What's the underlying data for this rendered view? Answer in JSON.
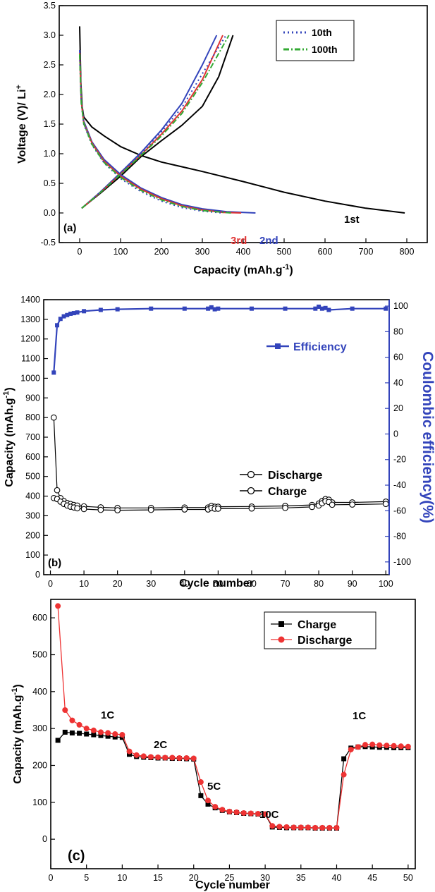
{
  "chart_data": [
    {
      "type": "line",
      "panel_label": "(a)",
      "xlabel": "Capacity (mAh.g",
      "xlabel_sup": "-1",
      "xlabel_end": ")",
      "ylabel": "Voltage (V)/ Li",
      "ylabel_sup": "+",
      "xlim": [
        -50,
        850
      ],
      "ylim": [
        -0.5,
        3.5
      ],
      "xticks": [
        "0",
        "100",
        "200",
        "300",
        "400",
        "500",
        "600",
        "700",
        "800"
      ],
      "yticks": [
        "-0.5",
        "0.0",
        "0.5",
        "1.0",
        "1.5",
        "2.0",
        "2.5",
        "3.0",
        "3.5"
      ],
      "legend": [
        "10th",
        "100th"
      ],
      "annotations": [
        "1st",
        "2nd",
        "3rd"
      ],
      "series": [
        {
          "name": "1st",
          "color": "#000000",
          "dash": "",
          "discharge": [
            [
              0,
              3.15
            ],
            [
              3,
              2.2
            ],
            [
              6,
              1.8
            ],
            [
              10,
              1.62
            ],
            [
              30,
              1.45
            ],
            [
              60,
              1.3
            ],
            [
              100,
              1.12
            ],
            [
              150,
              0.97
            ],
            [
              200,
              0.86
            ],
            [
              300,
              0.7
            ],
            [
              400,
              0.53
            ],
            [
              500,
              0.35
            ],
            [
              600,
              0.2
            ],
            [
              700,
              0.08
            ],
            [
              795,
              0.0
            ]
          ],
          "charge": [
            [
              5,
              0.08
            ],
            [
              50,
              0.33
            ],
            [
              100,
              0.62
            ],
            [
              150,
              0.95
            ],
            [
              200,
              1.22
            ],
            [
              250,
              1.48
            ],
            [
              300,
              1.8
            ],
            [
              340,
              2.3
            ],
            [
              375,
              3.0
            ]
          ]
        },
        {
          "name": "2nd",
          "color": "#3344bb",
          "dash": "",
          "discharge": [
            [
              0,
              2.75
            ],
            [
              4,
              1.9
            ],
            [
              10,
              1.55
            ],
            [
              30,
              1.2
            ],
            [
              60,
              0.9
            ],
            [
              100,
              0.65
            ],
            [
              150,
              0.42
            ],
            [
              200,
              0.26
            ],
            [
              250,
              0.14
            ],
            [
              300,
              0.07
            ],
            [
              360,
              0.02
            ],
            [
              430,
              0.0
            ]
          ],
          "charge": [
            [
              5,
              0.08
            ],
            [
              50,
              0.35
            ],
            [
              100,
              0.68
            ],
            [
              150,
              1.02
            ],
            [
              200,
              1.4
            ],
            [
              250,
              1.85
            ],
            [
              300,
              2.5
            ],
            [
              335,
              3.0
            ]
          ]
        },
        {
          "name": "3rd",
          "color": "#e03333",
          "dash": "",
          "discharge": [
            [
              0,
              2.7
            ],
            [
              4,
              1.88
            ],
            [
              10,
              1.52
            ],
            [
              30,
              1.18
            ],
            [
              60,
              0.87
            ],
            [
              100,
              0.62
            ],
            [
              150,
              0.4
            ],
            [
              200,
              0.24
            ],
            [
              250,
              0.12
            ],
            [
              300,
              0.05
            ],
            [
              350,
              0.01
            ],
            [
              395,
              0.0
            ]
          ],
          "charge": [
            [
              5,
              0.08
            ],
            [
              50,
              0.34
            ],
            [
              100,
              0.66
            ],
            [
              150,
              0.98
            ],
            [
              200,
              1.33
            ],
            [
              250,
              1.72
            ],
            [
              300,
              2.25
            ],
            [
              350,
              3.0
            ]
          ]
        },
        {
          "name": "10th",
          "color": "#3344bb",
          "dash": "2 4",
          "discharge": [
            [
              0,
              2.65
            ],
            [
              4,
              1.85
            ],
            [
              10,
              1.5
            ],
            [
              30,
              1.15
            ],
            [
              60,
              0.84
            ],
            [
              100,
              0.58
            ],
            [
              150,
              0.36
            ],
            [
              200,
              0.2
            ],
            [
              250,
              0.09
            ],
            [
              300,
              0.03
            ],
            [
              350,
              0.0
            ]
          ],
          "charge": [
            [
              5,
              0.08
            ],
            [
              50,
              0.35
            ],
            [
              100,
              0.67
            ],
            [
              150,
              1.0
            ],
            [
              200,
              1.37
            ],
            [
              250,
              1.78
            ],
            [
              300,
              2.35
            ],
            [
              358,
              3.0
            ]
          ]
        },
        {
          "name": "100th",
          "color": "#33aa33",
          "dash": "8 3 2 3",
          "discharge": [
            [
              0,
              2.68
            ],
            [
              4,
              1.86
            ],
            [
              10,
              1.51
            ],
            [
              30,
              1.16
            ],
            [
              60,
              0.85
            ],
            [
              100,
              0.6
            ],
            [
              150,
              0.38
            ],
            [
              200,
              0.22
            ],
            [
              250,
              0.11
            ],
            [
              300,
              0.04
            ],
            [
              370,
              0.0
            ]
          ],
          "charge": [
            [
              5,
              0.08
            ],
            [
              50,
              0.34
            ],
            [
              100,
              0.65
            ],
            [
              150,
              0.97
            ],
            [
              200,
              1.3
            ],
            [
              250,
              1.68
            ],
            [
              300,
              2.2
            ],
            [
              365,
              3.0
            ]
          ]
        }
      ]
    },
    {
      "type": "scatter",
      "panel_label": "(b)",
      "xlabel": "Cycle number",
      "ylabel": "Capacity (mAh.g",
      "ylabel_sup": "-1",
      "ylabel_end": ")",
      "y2label": "Coulombic efficiency(%)",
      "xlim": [
        -2,
        101
      ],
      "ylim": [
        0,
        1400
      ],
      "y2lim": [
        -110,
        105
      ],
      "xticks": [
        "0",
        "10",
        "20",
        "30",
        "40",
        "50",
        "60",
        "70",
        "80",
        "90",
        "100"
      ],
      "yticks": [
        "0",
        "100",
        "200",
        "300",
        "400",
        "500",
        "600",
        "700",
        "800",
        "900",
        "1000",
        "1100",
        "1200",
        "1300",
        "1400"
      ],
      "y2ticks": [
        "-100",
        "-80",
        "-60",
        "-40",
        "-20",
        "0",
        "20",
        "40",
        "60",
        "80",
        "100"
      ],
      "legend": [
        "Efficiency",
        "Discharge",
        "Charge"
      ],
      "efficiency": [
        [
          1,
          48
        ],
        [
          2,
          85
        ],
        [
          3,
          90
        ],
        [
          4,
          92
        ],
        [
          5,
          93
        ],
        [
          6,
          94
        ],
        [
          7,
          94.5
        ],
        [
          8,
          95
        ],
        [
          10,
          96
        ],
        [
          15,
          97
        ],
        [
          20,
          97.5
        ],
        [
          30,
          98
        ],
        [
          40,
          98
        ],
        [
          47,
          98
        ],
        [
          48,
          99
        ],
        [
          49,
          97.5
        ],
        [
          50,
          98
        ],
        [
          60,
          98
        ],
        [
          70,
          98
        ],
        [
          79,
          98
        ],
        [
          80,
          99.5
        ],
        [
          81,
          98
        ],
        [
          82,
          98.5
        ],
        [
          83,
          97
        ],
        [
          90,
          98
        ],
        [
          100,
          98
        ]
      ],
      "discharge": [
        [
          1,
          800
        ],
        [
          2,
          430
        ],
        [
          3,
          390
        ],
        [
          4,
          375
        ],
        [
          5,
          365
        ],
        [
          6,
          360
        ],
        [
          7,
          355
        ],
        [
          8,
          352
        ],
        [
          10,
          348
        ],
        [
          15,
          343
        ],
        [
          20,
          340
        ],
        [
          30,
          340
        ],
        [
          40,
          342
        ],
        [
          47,
          342
        ],
        [
          48,
          350
        ],
        [
          49,
          346
        ],
        [
          50,
          346
        ],
        [
          60,
          347
        ],
        [
          70,
          350
        ],
        [
          78,
          355
        ],
        [
          80,
          362
        ],
        [
          81,
          375
        ],
        [
          82,
          385
        ],
        [
          83,
          382
        ],
        [
          84,
          368
        ],
        [
          90,
          368
        ],
        [
          100,
          372
        ]
      ],
      "charge": [
        [
          1,
          390
        ],
        [
          2,
          385
        ],
        [
          3,
          372
        ],
        [
          4,
          360
        ],
        [
          5,
          352
        ],
        [
          6,
          346
        ],
        [
          7,
          342
        ],
        [
          8,
          338
        ],
        [
          10,
          334
        ],
        [
          15,
          330
        ],
        [
          20,
          328
        ],
        [
          30,
          330
        ],
        [
          40,
          332
        ],
        [
          47,
          332
        ],
        [
          48,
          340
        ],
        [
          49,
          336
        ],
        [
          50,
          336
        ],
        [
          60,
          337
        ],
        [
          70,
          340
        ],
        [
          78,
          345
        ],
        [
          80,
          352
        ],
        [
          81,
          364
        ],
        [
          82,
          374
        ],
        [
          83,
          370
        ],
        [
          84,
          356
        ],
        [
          90,
          357
        ],
        [
          100,
          360
        ]
      ]
    },
    {
      "type": "line",
      "panel_label": "(c)",
      "xlabel": "Cycle number",
      "ylabel": "Capacity (mAh.g",
      "ylabel_sup": "-1",
      "ylabel_end": ")",
      "xlim": [
        0,
        51
      ],
      "ylim": [
        -80,
        650
      ],
      "xticks": [
        "0",
        "5",
        "10",
        "15",
        "20",
        "25",
        "30",
        "35",
        "40",
        "45",
        "50"
      ],
      "yticks": [
        "0",
        "100",
        "200",
        "300",
        "400",
        "500",
        "600"
      ],
      "legend": [
        "Charge",
        "Discharge"
      ],
      "annotations": [
        "1C",
        "2C",
        "5C",
        "10C",
        "1C"
      ],
      "series": [
        {
          "name": "Charge",
          "color": "#000000",
          "marker": "square",
          "values": [
            268,
            290,
            288,
            287,
            285,
            283,
            281,
            279,
            277,
            276,
            230,
            224,
            222,
            221,
            220,
            220,
            219,
            219,
            218,
            217,
            118,
            95,
            85,
            78,
            74,
            72,
            70,
            69,
            68,
            67,
            33,
            32,
            31,
            31,
            31,
            31,
            30,
            30,
            30,
            30,
            218,
            247,
            250,
            251,
            250,
            249,
            249,
            248,
            248,
            248
          ]
        },
        {
          "name": "Discharge",
          "color": "#ee3333",
          "marker": "circle",
          "values": [
            632,
            350,
            322,
            310,
            300,
            295,
            290,
            288,
            285,
            283,
            238,
            228,
            225,
            223,
            222,
            221,
            221,
            220,
            220,
            219,
            155,
            105,
            88,
            80,
            75,
            73,
            71,
            70,
            69,
            68,
            36,
            34,
            33,
            32,
            32,
            32,
            31,
            31,
            31,
            31,
            175,
            243,
            250,
            256,
            257,
            255,
            254,
            253,
            252,
            251
          ]
        }
      ]
    }
  ]
}
